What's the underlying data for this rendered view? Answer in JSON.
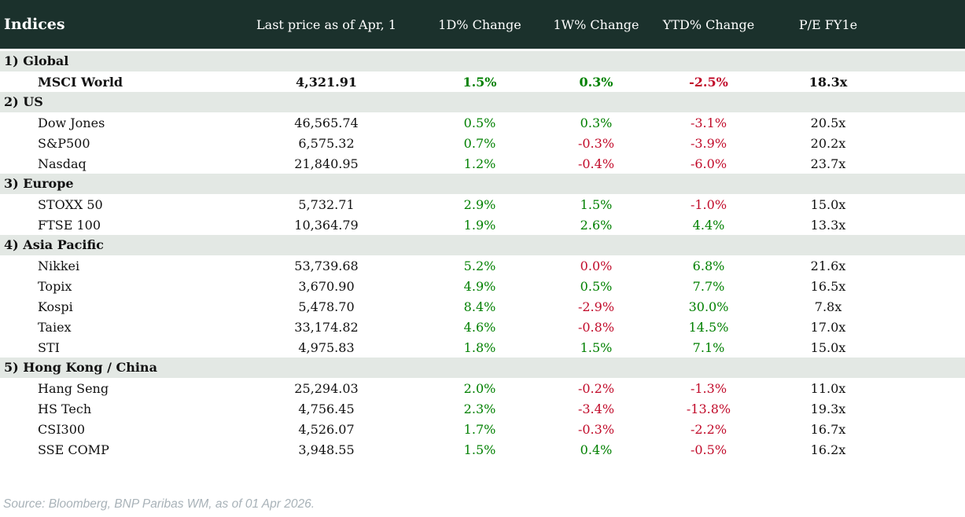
{
  "header": {
    "title": "Indices",
    "columns": [
      "Last price as of Apr, 1",
      "1D% Change",
      "1W% Change",
      "YTD% Change",
      "P/E FY1e"
    ]
  },
  "sections": [
    {
      "label": "1) Global",
      "rows": [
        {
          "name": "MSCI World",
          "bold": true,
          "price": "4,321.91",
          "changes": [
            {
              "text": "1.5%",
              "tone": "pos"
            },
            {
              "text": "0.3%",
              "tone": "pos"
            },
            {
              "text": "-2.5%",
              "tone": "neg"
            }
          ],
          "pe": "18.3x"
        }
      ]
    },
    {
      "label": "2) US",
      "rows": [
        {
          "name": "Dow Jones",
          "bold": false,
          "price": "46,565.74",
          "changes": [
            {
              "text": "0.5%",
              "tone": "pos"
            },
            {
              "text": "0.3%",
              "tone": "pos"
            },
            {
              "text": "-3.1%",
              "tone": "neg"
            }
          ],
          "pe": "20.5x"
        },
        {
          "name": "S&P500",
          "bold": false,
          "price": "6,575.32",
          "changes": [
            {
              "text": "0.7%",
              "tone": "pos"
            },
            {
              "text": "-0.3%",
              "tone": "neg"
            },
            {
              "text": "-3.9%",
              "tone": "neg"
            }
          ],
          "pe": "20.2x"
        },
        {
          "name": "Nasdaq",
          "bold": false,
          "price": "21,840.95",
          "changes": [
            {
              "text": "1.2%",
              "tone": "pos"
            },
            {
              "text": "-0.4%",
              "tone": "neg"
            },
            {
              "text": "-6.0%",
              "tone": "neg"
            }
          ],
          "pe": "23.7x"
        }
      ]
    },
    {
      "label": "3) Europe",
      "rows": [
        {
          "name": "STOXX 50",
          "bold": false,
          "price": "5,732.71",
          "changes": [
            {
              "text": "2.9%",
              "tone": "pos"
            },
            {
              "text": "1.5%",
              "tone": "pos"
            },
            {
              "text": "-1.0%",
              "tone": "neg"
            }
          ],
          "pe": "15.0x"
        },
        {
          "name": "FTSE 100",
          "bold": false,
          "price": "10,364.79",
          "changes": [
            {
              "text": "1.9%",
              "tone": "pos"
            },
            {
              "text": "2.6%",
              "tone": "pos"
            },
            {
              "text": "4.4%",
              "tone": "pos"
            }
          ],
          "pe": "13.3x"
        }
      ]
    },
    {
      "label": "4) Asia Pacific",
      "rows": [
        {
          "name": "Nikkei",
          "bold": false,
          "price": "53,739.68",
          "changes": [
            {
              "text": "5.2%",
              "tone": "pos"
            },
            {
              "text": "0.0%",
              "tone": "neg"
            },
            {
              "text": "6.8%",
              "tone": "pos"
            }
          ],
          "pe": "21.6x"
        },
        {
          "name": "Topix",
          "bold": false,
          "price": "3,670.90",
          "changes": [
            {
              "text": "4.9%",
              "tone": "pos"
            },
            {
              "text": "0.5%",
              "tone": "pos"
            },
            {
              "text": "7.7%",
              "tone": "pos"
            }
          ],
          "pe": "16.5x"
        },
        {
          "name": "Kospi",
          "bold": false,
          "price": "5,478.70",
          "changes": [
            {
              "text": "8.4%",
              "tone": "pos"
            },
            {
              "text": "-2.9%",
              "tone": "neg"
            },
            {
              "text": "30.0%",
              "tone": "pos"
            }
          ],
          "pe": "7.8x"
        },
        {
          "name": "Taiex",
          "bold": false,
          "price": "33,174.82",
          "changes": [
            {
              "text": "4.6%",
              "tone": "pos"
            },
            {
              "text": "-0.8%",
              "tone": "neg"
            },
            {
              "text": "14.5%",
              "tone": "pos"
            }
          ],
          "pe": "17.0x"
        },
        {
          "name": "STI",
          "bold": false,
          "price": "4,975.83",
          "changes": [
            {
              "text": "1.8%",
              "tone": "pos"
            },
            {
              "text": "1.5%",
              "tone": "pos"
            },
            {
              "text": "7.1%",
              "tone": "pos"
            }
          ],
          "pe": "15.0x"
        }
      ]
    },
    {
      "label": "5) Hong Kong / China",
      "rows": [
        {
          "name": "Hang Seng",
          "bold": false,
          "price": "25,294.03",
          "changes": [
            {
              "text": "2.0%",
              "tone": "pos"
            },
            {
              "text": "-0.2%",
              "tone": "neg"
            },
            {
              "text": "-1.3%",
              "tone": "neg"
            }
          ],
          "pe": "11.0x"
        },
        {
          "name": "HS Tech",
          "bold": false,
          "price": "4,756.45",
          "changes": [
            {
              "text": "2.3%",
              "tone": "pos"
            },
            {
              "text": "-3.4%",
              "tone": "neg"
            },
            {
              "text": "-13.8%",
              "tone": "neg"
            }
          ],
          "pe": "19.3x"
        },
        {
          "name": "CSI300",
          "bold": false,
          "price": "4,526.07",
          "changes": [
            {
              "text": "1.7%",
              "tone": "pos"
            },
            {
              "text": "-0.3%",
              "tone": "neg"
            },
            {
              "text": "-2.2%",
              "tone": "neg"
            }
          ],
          "pe": "16.7x"
        },
        {
          "name": "SSE COMP",
          "bold": false,
          "price": "3,948.55",
          "changes": [
            {
              "text": "1.5%",
              "tone": "pos"
            },
            {
              "text": "0.4%",
              "tone": "pos"
            },
            {
              "text": "-0.5%",
              "tone": "neg"
            }
          ],
          "pe": "16.2x"
        }
      ]
    }
  ],
  "footer": {
    "source": "Source: Bloomberg, BNP Paribas WM, as of 01 Apr 2026."
  },
  "colors": {
    "positive": "#008000",
    "negative": "#c10b2a",
    "header_bg": "#1b312c",
    "section_bg": "#e3e8e4"
  },
  "chart_data": {
    "type": "table",
    "title": "Indices",
    "columns": [
      "Indices",
      "Last price as of Apr, 1",
      "1D% Change",
      "1W% Change",
      "YTD% Change",
      "P/E FY1e"
    ],
    "groups": [
      "1) Global",
      "2) US",
      "3) Europe",
      "4) Asia Pacific",
      "5) Hong Kong / China"
    ],
    "rows": [
      [
        "MSCI World",
        4321.91,
        1.5,
        0.3,
        -2.5,
        18.3
      ],
      [
        "Dow Jones",
        46565.74,
        0.5,
        0.3,
        -3.1,
        20.5
      ],
      [
        "S&P500",
        6575.32,
        0.7,
        -0.3,
        -3.9,
        20.2
      ],
      [
        "Nasdaq",
        21840.95,
        1.2,
        -0.4,
        -6.0,
        23.7
      ],
      [
        "STOXX 50",
        5732.71,
        2.9,
        1.5,
        -1.0,
        15.0
      ],
      [
        "FTSE 100",
        10364.79,
        1.9,
        2.6,
        4.4,
        13.3
      ],
      [
        "Nikkei",
        53739.68,
        5.2,
        0.0,
        6.8,
        21.6
      ],
      [
        "Topix",
        3670.9,
        4.9,
        0.5,
        7.7,
        16.5
      ],
      [
        "Kospi",
        5478.7,
        8.4,
        -2.9,
        30.0,
        7.8
      ],
      [
        "Taiex",
        33174.82,
        4.6,
        -0.8,
        14.5,
        17.0
      ],
      [
        "STI",
        4975.83,
        1.8,
        1.5,
        7.1,
        15.0
      ],
      [
        "Hang Seng",
        25294.03,
        2.0,
        -0.2,
        -1.3,
        11.0
      ],
      [
        "HS Tech",
        4756.45,
        2.3,
        -3.4,
        -13.8,
        19.3
      ],
      [
        "CSI300",
        4526.07,
        1.7,
        -0.3,
        -2.2,
        16.7
      ],
      [
        "SSE COMP",
        3948.55,
        1.5,
        0.4,
        -0.5,
        16.2
      ]
    ]
  }
}
